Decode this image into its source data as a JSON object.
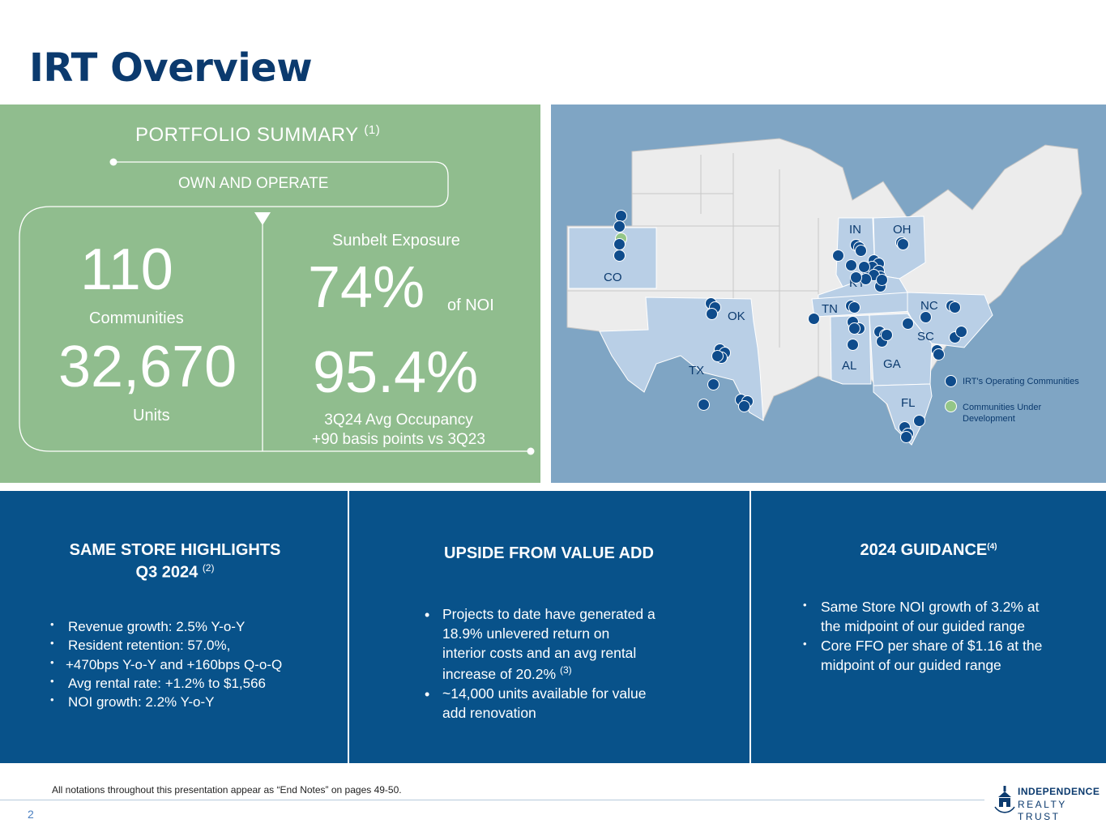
{
  "page": {
    "title": "IRT Overview",
    "page_number": "2"
  },
  "portfolio": {
    "heading": "PORTFOLIO SUMMARY",
    "heading_note": "(1)",
    "banner": "OWN AND OPERATE",
    "communities_value": "110",
    "communities_label": "Communities",
    "units_value": "32,670",
    "units_label": "Units",
    "sunbelt_label": "Sunbelt Exposure",
    "sunbelt_value": "74%",
    "sunbelt_suffix": "of NOI",
    "occupancy_value": "95.4%",
    "occupancy_label_1": "3Q24 Avg Occupancy",
    "occupancy_label_2": "+90 basis points vs 3Q23"
  },
  "map": {
    "states": [
      "CO",
      "OK",
      "TX",
      "IN",
      "OH",
      "KY",
      "TN",
      "NC",
      "SC",
      "AL",
      "GA",
      "FL"
    ],
    "legend": {
      "operating": "IRT's Operating Communities",
      "development_1": "Communities Under",
      "development_2": "Development"
    },
    "colors": {
      "operating": "#0f4c8c",
      "development": "#94c688",
      "highlight_state": "#b9cfe6",
      "other_state": "#ececec"
    }
  },
  "same_store": {
    "title_1": "SAME STORE HIGHLIGHTS",
    "title_2": "Q3 2024",
    "title_note": "(2)",
    "items": [
      "Revenue growth: 2.5% Y-o-Y",
      "Resident retention: 57.0%,",
      "+470bps Y-o-Y and +160bps Q-o-Q",
      "Avg rental rate: +1.2% to $1,566",
      "NOI growth: 2.2% Y-o-Y"
    ]
  },
  "value_add": {
    "title": "UPSIDE FROM VALUE ADD",
    "item1_lines": [
      "Projects to date have generated a",
      "18.9% unlevered return on",
      "interior costs and an avg rental",
      "increase of 20.2%"
    ],
    "item1_note": "(3)",
    "item2_lines": [
      "~14,000 units available for value",
      "add renovation"
    ]
  },
  "guidance": {
    "title": "2024 GUIDANCE",
    "title_note": "(4)",
    "items": [
      "Same Store NOI growth of 3.2% at the midpoint of our guided range",
      "Core FFO per share of $1.16 at the midpoint of our guided range"
    ]
  },
  "footer": {
    "note": "All notations throughout this presentation appear as “End Notes” on pages 49-50.",
    "logo_line1": "INDEPENDENCE",
    "logo_line2": "REALTY TRUST"
  }
}
